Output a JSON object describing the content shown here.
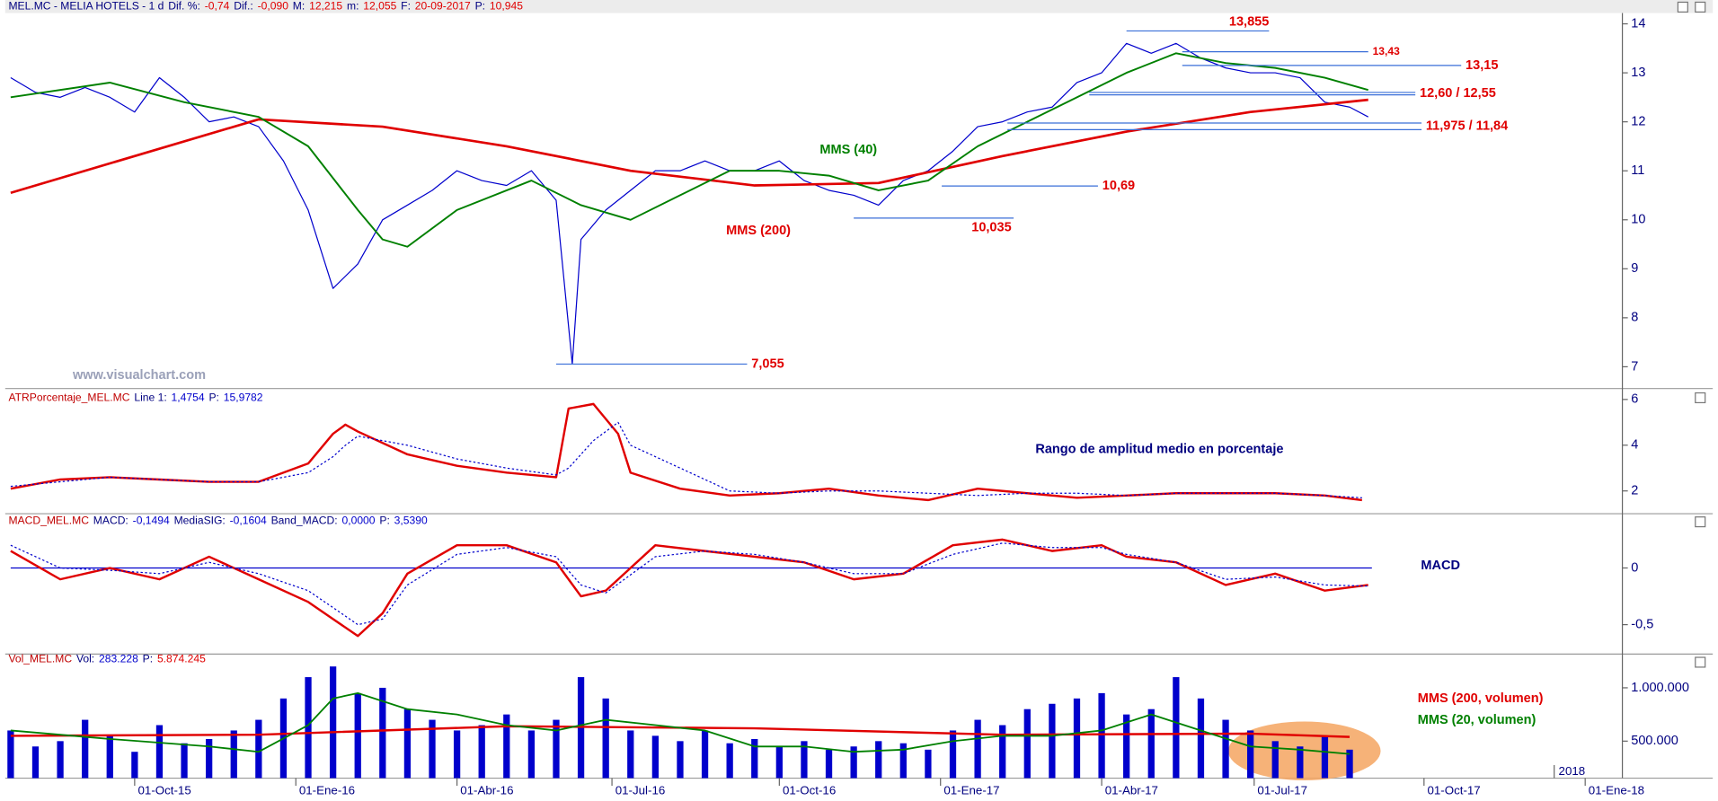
{
  "chart_data": [
    {
      "type": "line",
      "header": [
        {
          "text": "MEL.MC - MELIA HOTELS - 1 d",
          "color": "#000080"
        },
        {
          "text": "Dif. %:",
          "color": "#000080"
        },
        {
          "text": "-0,74",
          "color": "#e00000"
        },
        {
          "text": "Dif.:",
          "color": "#000080"
        },
        {
          "text": "-0,090",
          "color": "#e00000"
        },
        {
          "text": "M:",
          "color": "#000080"
        },
        {
          "text": "12,215",
          "color": "#e00000"
        },
        {
          "text": "m:",
          "color": "#000080"
        },
        {
          "text": "12,055",
          "color": "#e00000"
        },
        {
          "text": "F:",
          "color": "#000080"
        },
        {
          "text": "20-09-2017",
          "color": "#e00000"
        },
        {
          "text": "P:",
          "color": "#000080"
        },
        {
          "text": "10,945",
          "color": "#e00000"
        }
      ],
      "xlim": [
        0,
        130
      ],
      "ylim": [
        6.6,
        14.22
      ],
      "yticks": [
        7,
        8,
        9,
        10,
        11,
        12,
        13,
        14
      ],
      "series": [
        {
          "color": "#0000cc",
          "width": 1,
          "x": [
            0,
            2,
            4,
            6,
            8,
            10,
            12,
            14,
            16,
            18,
            20,
            22,
            24,
            26,
            28,
            30,
            32,
            34,
            36,
            38,
            40,
            42,
            44,
            45.3,
            46,
            48,
            50,
            52,
            54,
            56,
            58,
            60,
            62,
            64,
            66,
            68,
            70,
            72,
            74,
            76,
            78,
            80,
            82,
            84,
            86,
            88,
            90,
            92,
            94,
            96,
            98,
            100,
            102,
            104,
            106,
            108,
            109.5
          ],
          "values": [
            12.9,
            12.6,
            12.5,
            12.7,
            12.5,
            12.2,
            12.9,
            12.5,
            12.0,
            12.1,
            11.9,
            11.2,
            10.2,
            8.6,
            9.1,
            10.0,
            10.3,
            10.6,
            11.0,
            10.8,
            10.7,
            11.0,
            10.4,
            7.055,
            9.6,
            10.2,
            10.6,
            11.0,
            11.0,
            11.2,
            11.0,
            11.0,
            11.2,
            10.8,
            10.6,
            10.5,
            10.3,
            10.8,
            11.0,
            11.4,
            11.9,
            12.0,
            12.2,
            12.3,
            12.8,
            13.0,
            13.6,
            13.4,
            13.6,
            13.3,
            13.1,
            13.0,
            13.0,
            12.9,
            12.4,
            12.3,
            12.1
          ]
        },
        {
          "name": "MMS (200)",
          "color": "#e00000",
          "width": 2.2,
          "x": [
            0,
            10,
            20,
            30,
            40,
            50,
            60,
            70,
            80,
            90,
            100,
            109.5
          ],
          "values": [
            10.55,
            11.3,
            12.05,
            11.9,
            11.5,
            11.0,
            10.7,
            10.75,
            11.3,
            11.8,
            12.2,
            12.45
          ]
        },
        {
          "name": "MMS (40)",
          "color": "#008000",
          "width": 1.6,
          "x": [
            0,
            8,
            14,
            20,
            24,
            28,
            30,
            32,
            36,
            42,
            46,
            50,
            54,
            58,
            62,
            66,
            70,
            74,
            78,
            82,
            86,
            90,
            94,
            98,
            102,
            106,
            109.5
          ],
          "values": [
            12.5,
            12.8,
            12.4,
            12.1,
            11.5,
            10.2,
            9.6,
            9.45,
            10.2,
            10.8,
            10.3,
            10.0,
            10.5,
            11.0,
            11.0,
            10.9,
            10.6,
            10.8,
            11.5,
            12.0,
            12.5,
            13.0,
            13.4,
            13.2,
            13.1,
            12.9,
            12.65
          ]
        }
      ],
      "annotations": [
        {
          "label": "13,855",
          "values": [
            13.855
          ],
          "x": [
            90,
            101.5
          ],
          "label_pos": "above"
        },
        {
          "label": "13,43",
          "values": [
            13.43
          ],
          "x": [
            94.5,
            109.5
          ],
          "label_pos": "right",
          "size": "small"
        },
        {
          "label": "13,15",
          "values": [
            13.15
          ],
          "x": [
            94.5,
            117
          ],
          "label_pos": "right"
        },
        {
          "label": "12,60 / 12,55",
          "values": [
            12.6,
            12.55
          ],
          "x": [
            87,
            113.3
          ],
          "label_pos": "right"
        },
        {
          "label": "11,975 / 11,84",
          "values": [
            11.975,
            11.84
          ],
          "x": [
            80.4,
            113.8
          ],
          "label_pos": "right"
        },
        {
          "label": "10,69",
          "values": [
            10.69
          ],
          "x": [
            75.1,
            87.7
          ],
          "label_pos": "right"
        },
        {
          "label": "10,035",
          "values": [
            10.035
          ],
          "x": [
            68,
            80.9
          ],
          "label_pos": "below"
        },
        {
          "label": "7,055",
          "values": [
            7.055
          ],
          "x": [
            44,
            59.4
          ],
          "label_pos": "right"
        }
      ],
      "watermark": "www.visualchart.com"
    },
    {
      "type": "line",
      "header": [
        {
          "text": "ATRPorcentaje_MEL.MC",
          "color": "#c00000"
        },
        {
          "text": "Line 1:",
          "color": "#000080"
        },
        {
          "text": "1,4754",
          "color": "#0000cc"
        },
        {
          "text": "P:",
          "color": "#000080"
        },
        {
          "text": "15,9782",
          "color": "#0000cc"
        }
      ],
      "xlim": [
        0,
        130
      ],
      "ylim": [
        1.1,
        6.24
      ],
      "yticks": [
        2,
        4,
        6
      ],
      "series": [
        {
          "color": "#e00000",
          "width": 2,
          "x": [
            0,
            4,
            8,
            12,
            16,
            20,
            24,
            26,
            27,
            28,
            32,
            36,
            40,
            44,
            45,
            47,
            49,
            50,
            54,
            58,
            62,
            66,
            70,
            74,
            78,
            82,
            86,
            90,
            94,
            98,
            102,
            106,
            109
          ],
          "values": [
            2.1,
            2.5,
            2.6,
            2.5,
            2.4,
            2.4,
            3.2,
            4.5,
            4.9,
            4.6,
            3.6,
            3.1,
            2.8,
            2.6,
            5.6,
            5.8,
            4.5,
            2.8,
            2.1,
            1.8,
            1.9,
            2.1,
            1.8,
            1.6,
            2.1,
            1.9,
            1.7,
            1.8,
            1.9,
            1.9,
            1.9,
            1.8,
            1.6
          ]
        },
        {
          "color": "#0000cc",
          "width": 1,
          "dash": true,
          "x": [
            0,
            4,
            8,
            12,
            16,
            20,
            24,
            26,
            27,
            28,
            32,
            36,
            40,
            44,
            45,
            47,
            49,
            50,
            54,
            58,
            62,
            66,
            70,
            74,
            78,
            82,
            86,
            90,
            94,
            98,
            102,
            106,
            109
          ],
          "values": [
            2.2,
            2.4,
            2.6,
            2.5,
            2.4,
            2.4,
            2.8,
            3.5,
            4.0,
            4.4,
            4.0,
            3.4,
            3.0,
            2.7,
            3.0,
            4.2,
            5.0,
            4.0,
            3.0,
            2.0,
            1.9,
            2.0,
            2.0,
            1.9,
            1.8,
            1.9,
            1.9,
            1.8,
            1.9,
            1.9,
            1.9,
            1.8,
            1.7
          ]
        }
      ],
      "note": "Rango de amplitud medio en porcentaje"
    },
    {
      "type": "line",
      "header": [
        {
          "text": "MACD_MEL.MC",
          "color": "#c00000"
        },
        {
          "text": "MACD:",
          "color": "#000080"
        },
        {
          "text": "-0,1494",
          "color": "#0000cc"
        },
        {
          "text": "MediaSIG:",
          "color": "#000080"
        },
        {
          "text": "-0,1604",
          "color": "#0000cc"
        },
        {
          "text": "Band_MACD:",
          "color": "#000080"
        },
        {
          "text": "0,0000",
          "color": "#0000cc"
        },
        {
          "text": "P:",
          "color": "#000080"
        },
        {
          "text": "3,5390",
          "color": "#0000cc"
        }
      ],
      "xlim": [
        0,
        130
      ],
      "ylim": [
        -0.75,
        0.45
      ],
      "yticks": [
        {
          "value": -0.5,
          "label": "-0,5"
        },
        0
      ],
      "hline": 0,
      "series": [
        {
          "color": "#e00000",
          "width": 2,
          "x": [
            0,
            4,
            8,
            12,
            16,
            20,
            24,
            26,
            28,
            30,
            32,
            36,
            40,
            44,
            46,
            48,
            52,
            56,
            60,
            64,
            68,
            72,
            76,
            80,
            84,
            88,
            90,
            94,
            98,
            102,
            106,
            109.5
          ],
          "values": [
            0.15,
            -0.1,
            0.0,
            -0.1,
            0.1,
            -0.1,
            -0.3,
            -0.45,
            -0.6,
            -0.4,
            -0.05,
            0.2,
            0.2,
            0.05,
            -0.25,
            -0.2,
            0.2,
            0.15,
            0.1,
            0.05,
            -0.1,
            -0.05,
            0.2,
            0.25,
            0.15,
            0.2,
            0.1,
            0.05,
            -0.15,
            -0.05,
            -0.2,
            -0.15
          ]
        },
        {
          "color": "#0000cc",
          "width": 1,
          "dash": true,
          "x": [
            0,
            4,
            8,
            12,
            16,
            20,
            24,
            26,
            28,
            30,
            32,
            36,
            40,
            44,
            46,
            48,
            52,
            56,
            60,
            64,
            68,
            72,
            76,
            80,
            84,
            88,
            90,
            94,
            98,
            102,
            106,
            109.5
          ],
          "values": [
            0.2,
            0.0,
            -0.02,
            -0.05,
            0.05,
            -0.05,
            -0.2,
            -0.35,
            -0.5,
            -0.45,
            -0.15,
            0.12,
            0.18,
            0.1,
            -0.15,
            -0.22,
            0.1,
            0.15,
            0.12,
            0.05,
            -0.05,
            -0.05,
            0.12,
            0.22,
            0.18,
            0.18,
            0.12,
            0.05,
            -0.1,
            -0.08,
            -0.15,
            -0.16
          ]
        }
      ],
      "note": "MACD"
    },
    {
      "type": "bar",
      "header": [
        {
          "text": "Vol_MEL.MC",
          "color": "#c00000"
        },
        {
          "text": "Vol:",
          "color": "#000080"
        },
        {
          "text": "283.228",
          "color": "#0000cc"
        },
        {
          "text": "P:",
          "color": "#000080"
        },
        {
          "text": "5.874.245",
          "color": "#e00000"
        }
      ],
      "xlim": [
        0,
        130
      ],
      "ylim": [
        153000,
        1306000
      ],
      "yticks": [
        {
          "value": 500000,
          "label": "500.000"
        },
        {
          "value": 1000000,
          "label": "1.000.000"
        }
      ],
      "xticks": [
        {
          "value": 10,
          "label": "01-Oct-15"
        },
        {
          "value": 23,
          "label": "01-Ene-16"
        },
        {
          "value": 36,
          "label": "01-Abr-16"
        },
        {
          "value": 48.5,
          "label": "01-Jul-16"
        },
        {
          "value": 62,
          "label": "01-Oct-16"
        },
        {
          "value": 75,
          "label": "01-Ene-17"
        },
        {
          "value": 88,
          "label": "01-Abr-17"
        },
        {
          "value": 100.3,
          "label": "01-Jul-17"
        },
        {
          "value": 114,
          "label": "01-Oct-17"
        },
        {
          "value": 127,
          "label": "01-Ene-18"
        }
      ],
      "year_marker": {
        "value": 124.5,
        "label": "2018"
      },
      "series": [
        {
          "color": "#0000cc",
          "x": [
            0,
            2,
            4,
            6,
            8,
            10,
            12,
            14,
            16,
            18,
            20,
            22,
            24,
            26,
            28,
            30,
            32,
            34,
            36,
            38,
            40,
            42,
            44,
            46,
            48,
            50,
            52,
            54,
            56,
            58,
            60,
            62,
            64,
            66,
            68,
            70,
            72,
            74,
            76,
            78,
            80,
            82,
            84,
            86,
            88,
            90,
            92,
            94,
            96,
            98,
            100,
            102,
            104,
            106,
            108
          ],
          "values": [
            600000,
            450000,
            500000,
            700000,
            550000,
            400000,
            650000,
            480000,
            520000,
            600000,
            700000,
            900000,
            1100000,
            1200000,
            950000,
            1000000,
            800000,
            700000,
            600000,
            650000,
            750000,
            600000,
            700000,
            1100000,
            900000,
            600000,
            550000,
            500000,
            600000,
            480000,
            520000,
            450000,
            500000,
            420000,
            450000,
            500000,
            480000,
            420000,
            600000,
            700000,
            650000,
            800000,
            850000,
            900000,
            950000,
            750000,
            800000,
            1100000,
            900000,
            700000,
            600000,
            500000,
            450000,
            550000,
            420000
          ]
        },
        {
          "name": "MMS (200, volumen)",
          "type": "line",
          "color": "#e00000",
          "width": 2,
          "x": [
            0,
            20,
            40,
            60,
            80,
            100,
            108
          ],
          "values": [
            550000,
            560000,
            640000,
            620000,
            560000,
            570000,
            540000
          ]
        },
        {
          "name": "MMS (20, volumen)",
          "type": "line",
          "color": "#008000",
          "width": 1.5,
          "x": [
            0,
            8,
            16,
            20,
            24,
            26,
            28,
            32,
            36,
            40,
            44,
            48,
            52,
            56,
            60,
            64,
            68,
            72,
            76,
            80,
            84,
            88,
            92,
            96,
            100,
            104,
            108
          ],
          "values": [
            600000,
            520000,
            450000,
            400000,
            650000,
            900000,
            950000,
            800000,
            750000,
            650000,
            600000,
            700000,
            650000,
            600000,
            450000,
            450000,
            400000,
            420000,
            500000,
            550000,
            550000,
            600000,
            750000,
            600000,
            450000,
            420000,
            380000
          ]
        }
      ]
    }
  ]
}
